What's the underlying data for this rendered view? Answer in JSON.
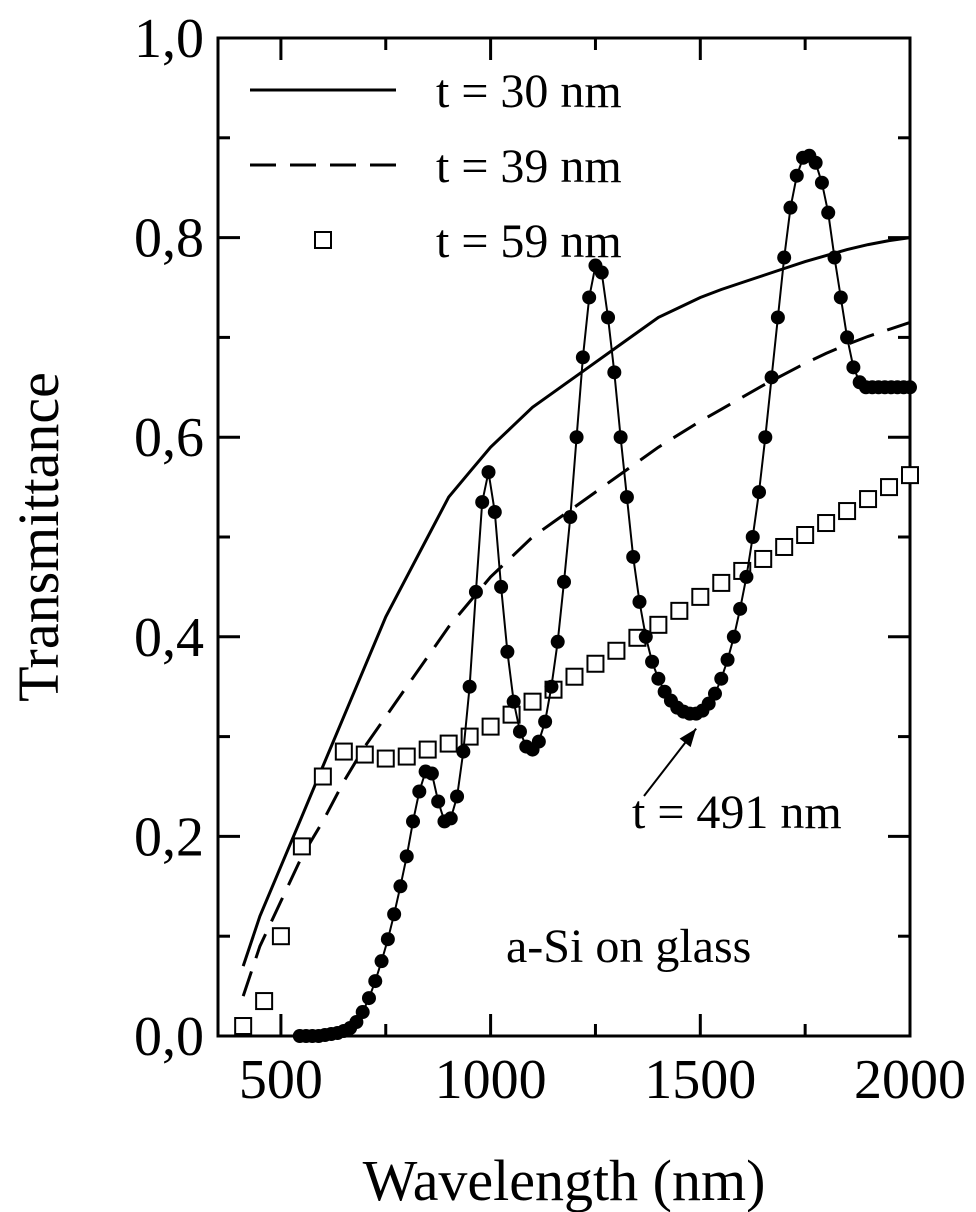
{
  "chart_data": {
    "type": "line",
    "title": "",
    "xlabel": "Wavelength (nm)",
    "ylabel": "Transmittance",
    "xlim": [
      350,
      2000
    ],
    "ylim": [
      0,
      1.0
    ],
    "grid": false,
    "legend_position": "top-left",
    "x_ticks": [
      {
        "value": 500,
        "label": "500"
      },
      {
        "value": 1000,
        "label": "1000"
      },
      {
        "value": 1500,
        "label": "1500"
      },
      {
        "value": 2000,
        "label": "2000"
      }
    ],
    "y_ticks": [
      {
        "value": 0.0,
        "label": "0,0"
      },
      {
        "value": 0.2,
        "label": "0,2"
      },
      {
        "value": 0.4,
        "label": "0,4"
      },
      {
        "value": 0.6,
        "label": "0,6"
      },
      {
        "value": 0.8,
        "label": "0,8"
      },
      {
        "value": 1.0,
        "label": "1,0"
      }
    ],
    "series": [
      {
        "name": "t = 30 nm",
        "style": "solid",
        "x": [
          410,
          450,
          500,
          550,
          600,
          650,
          700,
          750,
          800,
          850,
          900,
          950,
          1000,
          1050,
          1100,
          1150,
          1200,
          1250,
          1300,
          1350,
          1400,
          1450,
          1500,
          1550,
          1600,
          1650,
          1700,
          1750,
          1800,
          1850,
          1900,
          1950,
          2000
        ],
        "y": [
          0.07,
          0.12,
          0.17,
          0.22,
          0.27,
          0.32,
          0.37,
          0.42,
          0.46,
          0.5,
          0.54,
          0.565,
          0.59,
          0.61,
          0.63,
          0.645,
          0.66,
          0.675,
          0.69,
          0.705,
          0.72,
          0.73,
          0.74,
          0.748,
          0.755,
          0.762,
          0.769,
          0.776,
          0.782,
          0.788,
          0.793,
          0.797,
          0.8
        ]
      },
      {
        "name": "t = 39 nm",
        "style": "dashed",
        "x": [
          410,
          450,
          500,
          550,
          600,
          650,
          700,
          750,
          800,
          850,
          900,
          950,
          1000,
          1050,
          1100,
          1150,
          1200,
          1250,
          1300,
          1350,
          1400,
          1450,
          1500,
          1550,
          1600,
          1650,
          1700,
          1750,
          1800,
          1850,
          1900,
          1950,
          2000
        ],
        "y": [
          0.04,
          0.09,
          0.135,
          0.18,
          0.215,
          0.255,
          0.29,
          0.32,
          0.35,
          0.38,
          0.41,
          0.435,
          0.46,
          0.48,
          0.5,
          0.515,
          0.53,
          0.545,
          0.56,
          0.575,
          0.59,
          0.603,
          0.616,
          0.628,
          0.64,
          0.652,
          0.663,
          0.674,
          0.684,
          0.693,
          0.701,
          0.708,
          0.715
        ]
      },
      {
        "name": "t = 59 nm",
        "style": "open-square",
        "x": [
          410,
          460,
          500,
          550,
          600,
          650,
          700,
          750,
          800,
          850,
          900,
          950,
          1000,
          1050,
          1100,
          1150,
          1200,
          1250,
          1300,
          1350,
          1400,
          1450,
          1500,
          1550,
          1600,
          1650,
          1700,
          1750,
          1800,
          1850,
          1900,
          1950,
          2000
        ],
        "y": [
          0.01,
          0.035,
          0.1,
          0.19,
          0.26,
          0.285,
          0.282,
          0.278,
          0.28,
          0.287,
          0.293,
          0.3,
          0.31,
          0.322,
          0.335,
          0.347,
          0.36,
          0.373,
          0.386,
          0.399,
          0.412,
          0.426,
          0.44,
          0.454,
          0.466,
          0.478,
          0.49,
          0.502,
          0.514,
          0.526,
          0.538,
          0.55,
          0.562
        ]
      },
      {
        "name": "t = 491 nm",
        "style": "filled-circle-line",
        "x": [
          545,
          560,
          575,
          590,
          605,
          620,
          635,
          650,
          665,
          680,
          695,
          710,
          725,
          740,
          755,
          770,
          785,
          800,
          815,
          830,
          845,
          860,
          875,
          890,
          905,
          920,
          935,
          950,
          965,
          980,
          995,
          1010,
          1025,
          1040,
          1055,
          1070,
          1085,
          1100,
          1115,
          1130,
          1145,
          1160,
          1175,
          1190,
          1205,
          1220,
          1235,
          1250,
          1265,
          1280,
          1295,
          1310,
          1325,
          1340,
          1355,
          1370,
          1385,
          1400,
          1415,
          1430,
          1445,
          1460,
          1475,
          1490,
          1505,
          1520,
          1535,
          1550,
          1565,
          1580,
          1595,
          1610,
          1625,
          1640,
          1655,
          1670,
          1685,
          1700,
          1715,
          1730,
          1745,
          1760,
          1775,
          1790,
          1805,
          1820,
          1835,
          1850,
          1865,
          1880,
          1895,
          1910,
          1925,
          1940,
          1955,
          1970,
          1985,
          2000
        ],
        "y": [
          0.0,
          0.0,
          0.0,
          0.0,
          0.001,
          0.002,
          0.003,
          0.005,
          0.008,
          0.014,
          0.024,
          0.038,
          0.055,
          0.075,
          0.097,
          0.122,
          0.15,
          0.18,
          0.215,
          0.245,
          0.265,
          0.263,
          0.235,
          0.215,
          0.218,
          0.24,
          0.285,
          0.35,
          0.445,
          0.535,
          0.565,
          0.525,
          0.45,
          0.385,
          0.335,
          0.305,
          0.29,
          0.287,
          0.295,
          0.315,
          0.35,
          0.395,
          0.455,
          0.52,
          0.6,
          0.68,
          0.74,
          0.772,
          0.765,
          0.72,
          0.665,
          0.6,
          0.54,
          0.48,
          0.435,
          0.4,
          0.375,
          0.358,
          0.345,
          0.336,
          0.329,
          0.325,
          0.323,
          0.323,
          0.326,
          0.333,
          0.343,
          0.358,
          0.377,
          0.4,
          0.428,
          0.46,
          0.5,
          0.545,
          0.6,
          0.66,
          0.72,
          0.78,
          0.83,
          0.862,
          0.88,
          0.882,
          0.875,
          0.855,
          0.825,
          0.78,
          0.74,
          0.7,
          0.67,
          0.655,
          0.65,
          0.65,
          0.65,
          0.65,
          0.65,
          0.65,
          0.65,
          0.65
        ]
      }
    ],
    "annotations": [
      {
        "text": "t = 491 nm",
        "arrow_to": {
          "x": 1490,
          "y": 0.322
        },
        "anchor": {
          "x": 1600,
          "y": 0.23
        }
      },
      {
        "text": "a-Si on glass",
        "anchor": {
          "x": 1520,
          "y": 0.09
        }
      }
    ]
  }
}
